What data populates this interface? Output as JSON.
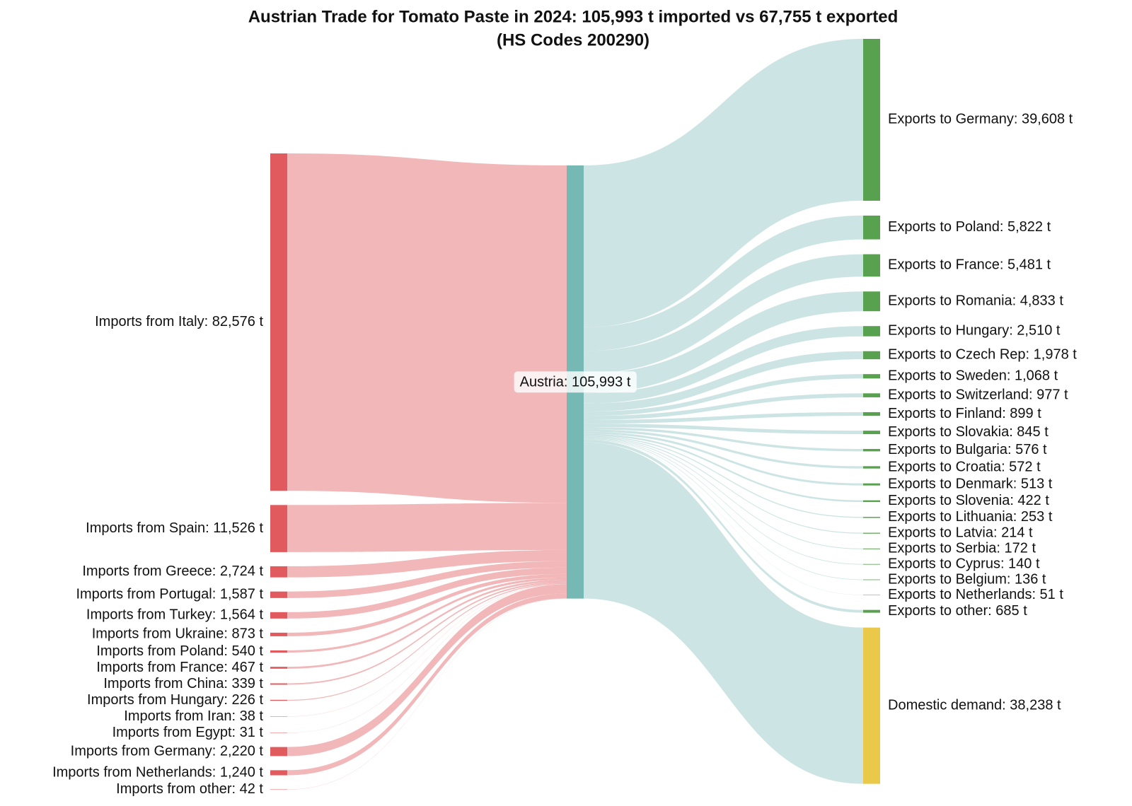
{
  "chart_data": {
    "type": "sankey",
    "title": "Austrian Trade for Tomato Paste in 2024: 105,993 t imported vs 67,755 t exported",
    "subtitle": "(HS Codes 200290)",
    "hub": {
      "label": "Austria: 105,993 t",
      "value": 105993,
      "color": "#76b8b3"
    },
    "sources": {
      "color": "#e05a5e",
      "link_color": "#f0b3b5",
      "labels": [
        "Imports from Italy: 82,576 t",
        "Imports from Spain: 11,526 t",
        "Imports from Greece: 2,724 t",
        "Imports from Portugal: 1,587 t",
        "Imports from Turkey: 1,564 t",
        "Imports from Ukraine: 873 t",
        "Imports from Poland: 540 t",
        "Imports from France: 467 t",
        "Imports from China: 339 t",
        "Imports from Hungary: 226 t",
        "Imports from Iran: 38 t",
        "Imports from Egypt: 31 t",
        "Imports from Germany: 2,220 t",
        "Imports from Netherlands: 1,240 t",
        "Imports from other: 42 t"
      ],
      "values": [
        82576,
        11526,
        2724,
        1587,
        1564,
        873,
        540,
        467,
        339,
        226,
        38,
        31,
        2220,
        1240,
        42
      ]
    },
    "targets": {
      "link_color": "#c3dfde",
      "labels": [
        "Exports to Germany: 39,608 t",
        "Exports to Poland: 5,822 t",
        "Exports to France: 5,481 t",
        "Exports to Romania: 4,833 t",
        "Exports to Hungary: 2,510 t",
        "Exports to Czech Rep: 1,978 t",
        "Exports to Sweden: 1,068 t",
        "Exports to Switzerland: 977 t",
        "Exports to Finland: 899 t",
        "Exports to Slovakia: 845 t",
        "Exports to Bulgaria: 576 t",
        "Exports to Croatia: 572 t",
        "Exports to Denmark: 513 t",
        "Exports to Slovenia: 422 t",
        "Exports to Lithuania: 253 t",
        "Exports to Latvia: 214 t",
        "Exports to Serbia: 172 t",
        "Exports to Cyprus: 140 t",
        "Exports to Belgium: 136 t",
        "Exports to Netherlands: 51 t",
        "Exports to other: 685 t",
        "Domestic demand: 38,238 t"
      ],
      "values": [
        39608,
        5822,
        5481,
        4833,
        2510,
        1978,
        1068,
        977,
        899,
        845,
        576,
        572,
        513,
        422,
        253,
        214,
        172,
        140,
        136,
        51,
        685,
        38238
      ],
      "colors": [
        "#58a14e",
        "#58a14e",
        "#58a14e",
        "#58a14e",
        "#58a14e",
        "#58a14e",
        "#58a14e",
        "#58a14e",
        "#58a14e",
        "#58a14e",
        "#58a14e",
        "#58a14e",
        "#58a14e",
        "#58a14e",
        "#58a14e",
        "#58a14e",
        "#58a14e",
        "#58a14e",
        "#58a14e",
        "#58a14e",
        "#58a14e",
        "#e9c84a"
      ]
    }
  }
}
